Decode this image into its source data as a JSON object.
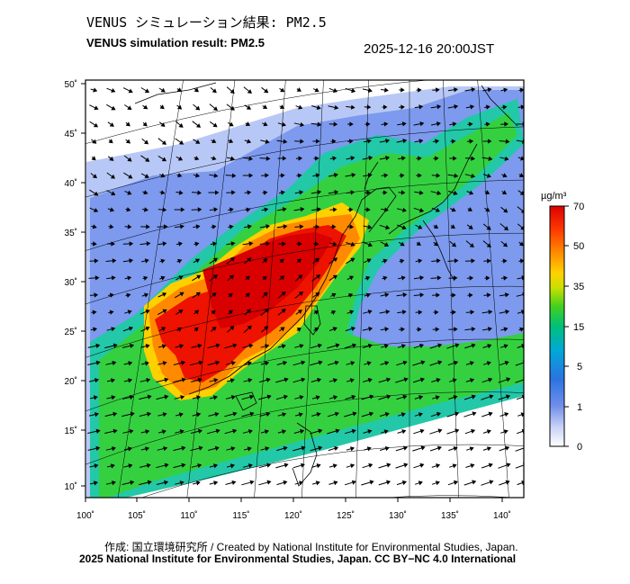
{
  "header": {
    "title_jp": "VENUS シミュレーション結果: PM2.5",
    "title_en": "VENUS simulation result: PM2.5",
    "timestamp": "2025-12-16 20:00JST"
  },
  "map": {
    "lon_labels": [
      "100˚",
      "105˚",
      "110˚",
      "115˚",
      "120˚",
      "125˚",
      "130˚",
      "135˚",
      "140˚"
    ],
    "lat_labels": [
      "50˚",
      "45˚",
      "40˚",
      "35˚",
      "30˚",
      "25˚",
      "20˚",
      "15˚",
      "10˚"
    ]
  },
  "legend": {
    "unit": "µg/m³",
    "levels": [
      "70",
      "50",
      "35",
      "15",
      "5",
      "1",
      "0"
    ],
    "colors": [
      "#cc0000",
      "#ff2a00",
      "#ff8a00",
      "#ffe400",
      "#8de000",
      "#00c060",
      "#00b8b0",
      "#0090e0",
      "#3a6ae0",
      "#8aa4f0",
      "#e8ecfc"
    ]
  },
  "footer": {
    "credit_line1": "作成: 国立環境研究所 / Created by National Institute for Environmental Studies, Japan.",
    "credit_line2": "2025 National Institute for Environmental Studies, Japan. CC BY−NC 4.0 International"
  }
}
